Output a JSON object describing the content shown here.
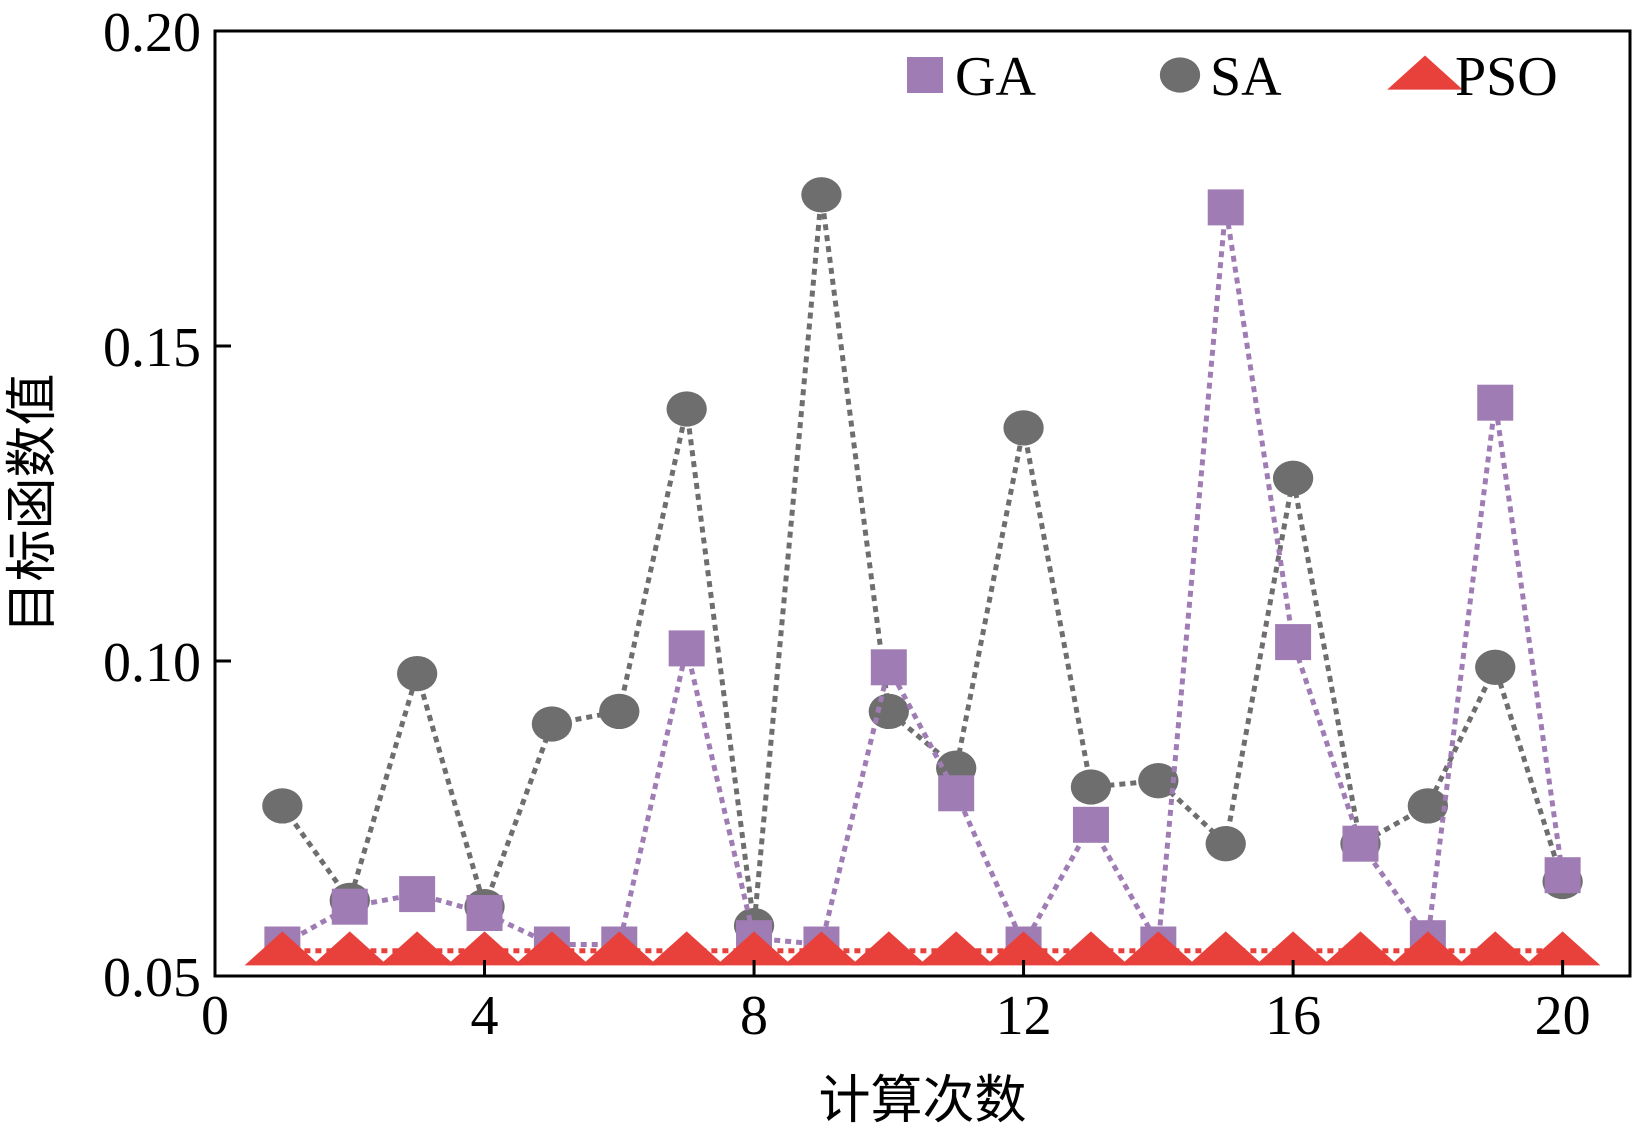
{
  "chart_data": {
    "type": "line",
    "title": "",
    "xlabel": "计算次数",
    "ylabel": "目标函数值",
    "xlim": [
      0,
      21
    ],
    "ylim": [
      0.05,
      0.2
    ],
    "xticks": [
      0,
      4,
      8,
      12,
      16,
      20
    ],
    "yticks": [
      0.05,
      0.1,
      0.15,
      0.2
    ],
    "xtick_labels": [
      "0",
      "4",
      "8",
      "12",
      "16",
      "20"
    ],
    "ytick_labels": [
      "0.05",
      "0.10",
      "0.15",
      "0.20"
    ],
    "grid": false,
    "legend_position": "top-right",
    "x": [
      1,
      2,
      3,
      4,
      5,
      6,
      7,
      8,
      9,
      10,
      11,
      12,
      13,
      14,
      15,
      16,
      17,
      18,
      19,
      20
    ],
    "series": [
      {
        "name": "GA",
        "marker": "square",
        "color": "#a07cb4",
        "values": [
          0.055,
          0.061,
          0.063,
          0.06,
          0.055,
          0.055,
          0.102,
          0.056,
          0.055,
          0.099,
          0.079,
          0.055,
          0.074,
          0.055,
          0.172,
          0.103,
          0.071,
          0.056,
          0.141,
          0.066
        ]
      },
      {
        "name": "SA",
        "marker": "circle",
        "color": "#6e6e6e",
        "values": [
          0.077,
          0.062,
          0.098,
          0.061,
          0.09,
          0.092,
          0.14,
          0.058,
          0.174,
          0.092,
          0.083,
          0.137,
          0.08,
          0.081,
          0.071,
          0.129,
          0.071,
          0.077,
          0.099,
          0.065
        ]
      },
      {
        "name": "PSO",
        "marker": "triangle",
        "color": "#e8413c",
        "values": [
          0.054,
          0.054,
          0.054,
          0.054,
          0.054,
          0.054,
          0.054,
          0.054,
          0.054,
          0.054,
          0.054,
          0.054,
          0.054,
          0.054,
          0.054,
          0.054,
          0.054,
          0.054,
          0.054,
          0.054
        ]
      }
    ]
  }
}
